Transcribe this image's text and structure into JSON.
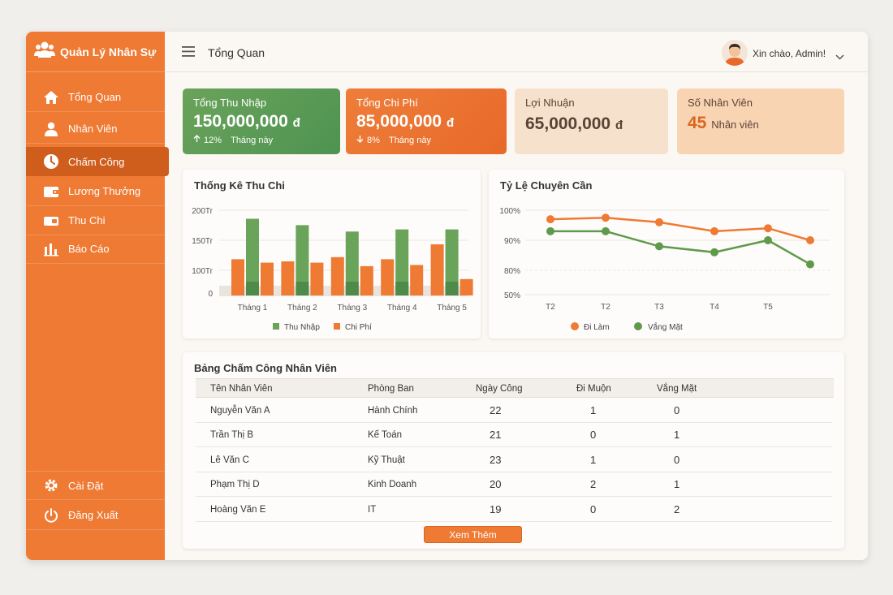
{
  "app": {
    "title": "Quản Lý Nhân Sự"
  },
  "sidebar": {
    "items": [
      {
        "label": "Tổng Quan",
        "icon": "home-icon"
      },
      {
        "label": "Nhân Viên",
        "icon": "user-icon"
      },
      {
        "label": "Chấm Công",
        "icon": "clock-icon",
        "active": true
      },
      {
        "label": "Lương Thưởng",
        "icon": "wallet-icon"
      },
      {
        "label": "Thu Chi",
        "icon": "cash-icon"
      },
      {
        "label": "Báo Cáo",
        "icon": "bar-chart-icon"
      }
    ],
    "bottom": [
      {
        "label": "Cài Đặt",
        "icon": "gear-icon"
      },
      {
        "label": "Đăng Xuất",
        "icon": "power-icon"
      }
    ]
  },
  "header": {
    "title": "Tổng Quan",
    "greeting": "Xin chào, Admin!"
  },
  "kpis": [
    {
      "label": "Tổng Thu Nhập",
      "value": "150,000,000",
      "unit": "đ",
      "trend": "12%",
      "trend_text": "Tháng này"
    },
    {
      "label": "Tổng Chi Phí",
      "value": "85,000,000",
      "unit": "đ",
      "trend": "8%",
      "trend_text": "Tháng này"
    },
    {
      "label": "Lợi Nhuận",
      "value": "65,000,000",
      "unit": "đ"
    },
    {
      "label": "Số Nhân Viên",
      "value": "45",
      "unit": "Nhân viên"
    }
  ],
  "colors": {
    "accent": "#ee7a33",
    "green": "#6aa35a",
    "orange": "#ee7a33",
    "active": "#cf5d1c"
  },
  "chart_data": [
    {
      "type": "bar",
      "title": "Thống Kê Thu Chi",
      "categories": [
        "Tháng 1",
        "Tháng 2",
        "Tháng 3",
        "Tháng 4",
        "Tháng 5"
      ],
      "y_ticks": [
        "200Tr",
        "150Tr",
        "100Tr",
        "0"
      ],
      "ylim": [
        0,
        200
      ],
      "series": [
        {
          "name": "Thu Nhập",
          "values": [
            180,
            165,
            150,
            155,
            155
          ],
          "color": "#6aa35a"
        },
        {
          "name": "Chi Phí",
          "values": [
            140,
            140,
            125,
            130,
            70
          ],
          "color": "#ee7a33"
        }
      ],
      "extra_bars": {
        "values": [
          85,
          80,
          90,
          85,
          120
        ],
        "color": "#ee7a33"
      },
      "legend": "bottom",
      "grid": true
    },
    {
      "type": "line",
      "title": "Tỷ Lệ Chuyên Cần",
      "categories": [
        "T2",
        "T2",
        "T3",
        "T4",
        "T5",
        ""
      ],
      "y_ticks": [
        "100%",
        "90%",
        "80%",
        "50%"
      ],
      "series": [
        {
          "name": "Đi Làm",
          "values": [
            97,
            97.5,
            96,
            93,
            94,
            90
          ],
          "color": "#ee7a33"
        },
        {
          "name": "Vắng Mặt",
          "values": [
            93,
            93,
            88,
            86,
            90,
            82
          ],
          "color": "#5f9a4c"
        }
      ],
      "legend": "bottom",
      "grid": true
    }
  ],
  "table": {
    "title": "Bảng Chấm Công Nhân Viên",
    "columns": [
      "Tên Nhân Viên",
      "Phòng Ban",
      "Ngày Công",
      "Đi Muộn",
      "Vắng Mặt"
    ],
    "rows": [
      [
        "Nguyễn Văn A",
        "Hành Chính",
        "22",
        "1",
        "0"
      ],
      [
        "Trần Thị B",
        "Kế Toán",
        "21",
        "0",
        "1"
      ],
      [
        "Lê Văn C",
        "Kỹ Thuật",
        "23",
        "1",
        "0"
      ],
      [
        "Phạm Thị D",
        "Kinh Doanh",
        "20",
        "2",
        "1"
      ],
      [
        "Hoàng Văn E",
        "IT",
        "19",
        "0",
        "2"
      ]
    ],
    "more_label": "Xem Thêm"
  }
}
